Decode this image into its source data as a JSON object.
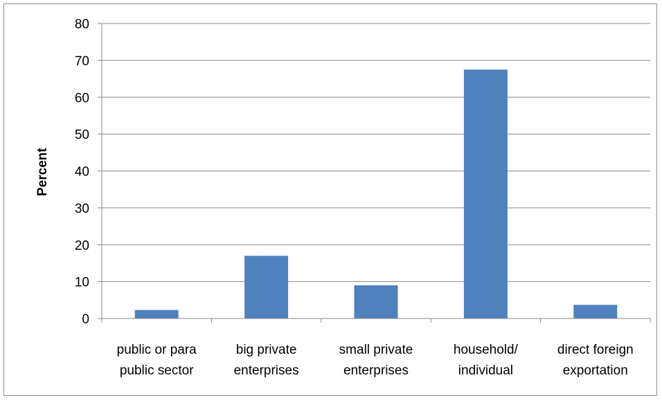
{
  "chart_data": {
    "type": "bar",
    "title": "",
    "xlabel": "",
    "ylabel": "Percent",
    "ylim": [
      0,
      80
    ],
    "yticks": [
      0,
      10,
      20,
      30,
      40,
      50,
      60,
      70,
      80
    ],
    "grid": true,
    "legend": "none",
    "categories": [
      [
        "public or para",
        "public sector"
      ],
      [
        "big private",
        "enterprises"
      ],
      [
        "small private",
        "enterprises"
      ],
      [
        "household/",
        "individual"
      ],
      [
        "direct foreign",
        "exportation"
      ]
    ],
    "values": [
      2.3,
      17,
      9,
      67.5,
      3.7
    ],
    "bar_color": "#4f81bd",
    "grid_color": "#878787"
  }
}
